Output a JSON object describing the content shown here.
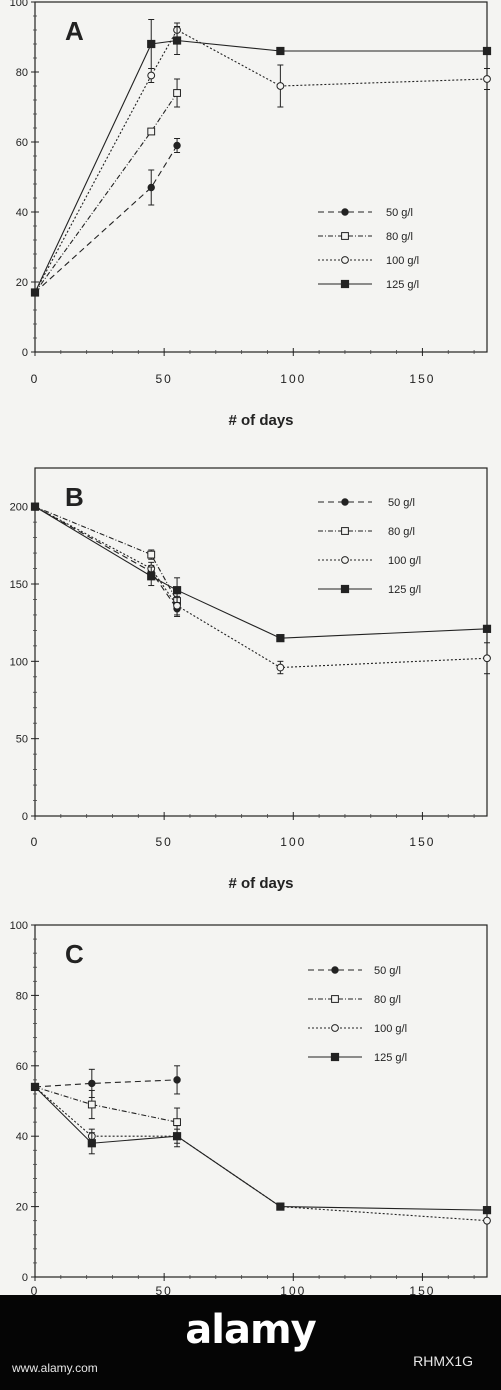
{
  "chart_data": [
    {
      "type": "line",
      "panel_label": "A",
      "xlabel": "# of days",
      "ylabel": "",
      "xlim": [
        0,
        175
      ],
      "ylim": [
        0,
        100
      ],
      "xticks": [
        0,
        50,
        100,
        150
      ],
      "xtick_labels": [
        "0",
        "50",
        "100",
        "150"
      ],
      "yticks": [
        0,
        20,
        40,
        60,
        80,
        100
      ],
      "ytick_labels": [
        "0",
        "20",
        "40",
        "60",
        "80",
        "100"
      ],
      "legend_position": "center-right",
      "series": [
        {
          "name": "50 g/l",
          "marker": "filled-circle",
          "dash": "6,4",
          "x": [
            0,
            45,
            55
          ],
          "y": [
            17,
            47,
            59
          ],
          "err": [
            0,
            5,
            2
          ]
        },
        {
          "name": "80 g/l",
          "marker": "open-square",
          "dash": "5,2,1,2",
          "x": [
            0,
            45,
            55
          ],
          "y": [
            17,
            63,
            74
          ],
          "err": [
            0,
            0,
            4
          ]
        },
        {
          "name": "100 g/l",
          "marker": "open-circle",
          "dash": "2,2",
          "x": [
            0,
            45,
            55,
            95,
            175
          ],
          "y": [
            17,
            79,
            92,
            76,
            78
          ],
          "err": [
            0,
            2,
            2,
            6,
            3
          ]
        },
        {
          "name": "125 g/l",
          "marker": "filled-square",
          "dash": "",
          "x": [
            0,
            45,
            55,
            95,
            175
          ],
          "y": [
            17,
            88,
            89,
            86,
            86
          ],
          "err": [
            0,
            7,
            4,
            0,
            0
          ]
        }
      ]
    },
    {
      "type": "line",
      "panel_label": "B",
      "xlabel": "# of days",
      "ylabel": "",
      "xlim": [
        0,
        175
      ],
      "ylim": [
        0,
        225
      ],
      "xticks": [
        0,
        50,
        100,
        150
      ],
      "xtick_labels": [
        "0",
        "50",
        "100",
        "150"
      ],
      "yticks": [
        0,
        50,
        100,
        150,
        200
      ],
      "ytick_labels": [
        "0",
        "50",
        "100",
        "150",
        "200"
      ],
      "legend_position": "top-right",
      "series": [
        {
          "name": "50 g/l",
          "marker": "filled-circle",
          "dash": "6,4",
          "x": [
            0,
            45,
            55
          ],
          "y": [
            200,
            158,
            134
          ],
          "err": [
            0,
            4,
            5
          ]
        },
        {
          "name": "80 g/l",
          "marker": "open-square",
          "dash": "5,2,1,2",
          "x": [
            0,
            45,
            55
          ],
          "y": [
            200,
            169,
            139
          ],
          "err": [
            0,
            3,
            5
          ]
        },
        {
          "name": "100 g/l",
          "marker": "open-circle",
          "dash": "2,2",
          "x": [
            0,
            45,
            55,
            95,
            175
          ],
          "y": [
            200,
            160,
            136,
            96,
            102
          ],
          "err": [
            0,
            4,
            6,
            4,
            10
          ]
        },
        {
          "name": "125 g/l",
          "marker": "filled-square",
          "dash": "",
          "x": [
            0,
            45,
            55,
            95,
            175
          ],
          "y": [
            200,
            155,
            146,
            115,
            121
          ],
          "err": [
            0,
            6,
            8,
            0,
            0
          ]
        }
      ]
    },
    {
      "type": "line",
      "panel_label": "C",
      "xlabel": "",
      "ylabel": "",
      "xlim": [
        0,
        175
      ],
      "ylim": [
        0,
        100
      ],
      "xticks": [
        0,
        50,
        100,
        150
      ],
      "xtick_labels": [
        "0",
        "50",
        "100",
        "150"
      ],
      "yticks": [
        0,
        20,
        40,
        60,
        80,
        100
      ],
      "ytick_labels": [
        "0",
        "20",
        "40",
        "60",
        "80",
        "100"
      ],
      "legend_position": "top-right",
      "series": [
        {
          "name": "50 g/l",
          "marker": "filled-circle",
          "dash": "6,4",
          "x": [
            0,
            22,
            55
          ],
          "y": [
            54,
            55,
            56
          ],
          "err": [
            0,
            4,
            4
          ]
        },
        {
          "name": "80 g/l",
          "marker": "open-square",
          "dash": "5,2,1,2",
          "x": [
            0,
            22,
            55
          ],
          "y": [
            54,
            49,
            44
          ],
          "err": [
            0,
            4,
            4
          ]
        },
        {
          "name": "100 g/l",
          "marker": "open-circle",
          "dash": "2,2",
          "x": [
            0,
            22,
            55,
            95,
            175
          ],
          "y": [
            54,
            40,
            40,
            20,
            16
          ],
          "err": [
            0,
            2,
            2,
            0,
            0
          ]
        },
        {
          "name": "125 g/l",
          "marker": "filled-square",
          "dash": "",
          "x": [
            0,
            22,
            55,
            95,
            175
          ],
          "y": [
            54,
            38,
            40,
            20,
            19
          ],
          "err": [
            0,
            3,
            3,
            0,
            0
          ]
        }
      ]
    }
  ],
  "watermark": {
    "brand": "alamy",
    "image_id": "RHMX1G",
    "url": "www.alamy.com"
  }
}
